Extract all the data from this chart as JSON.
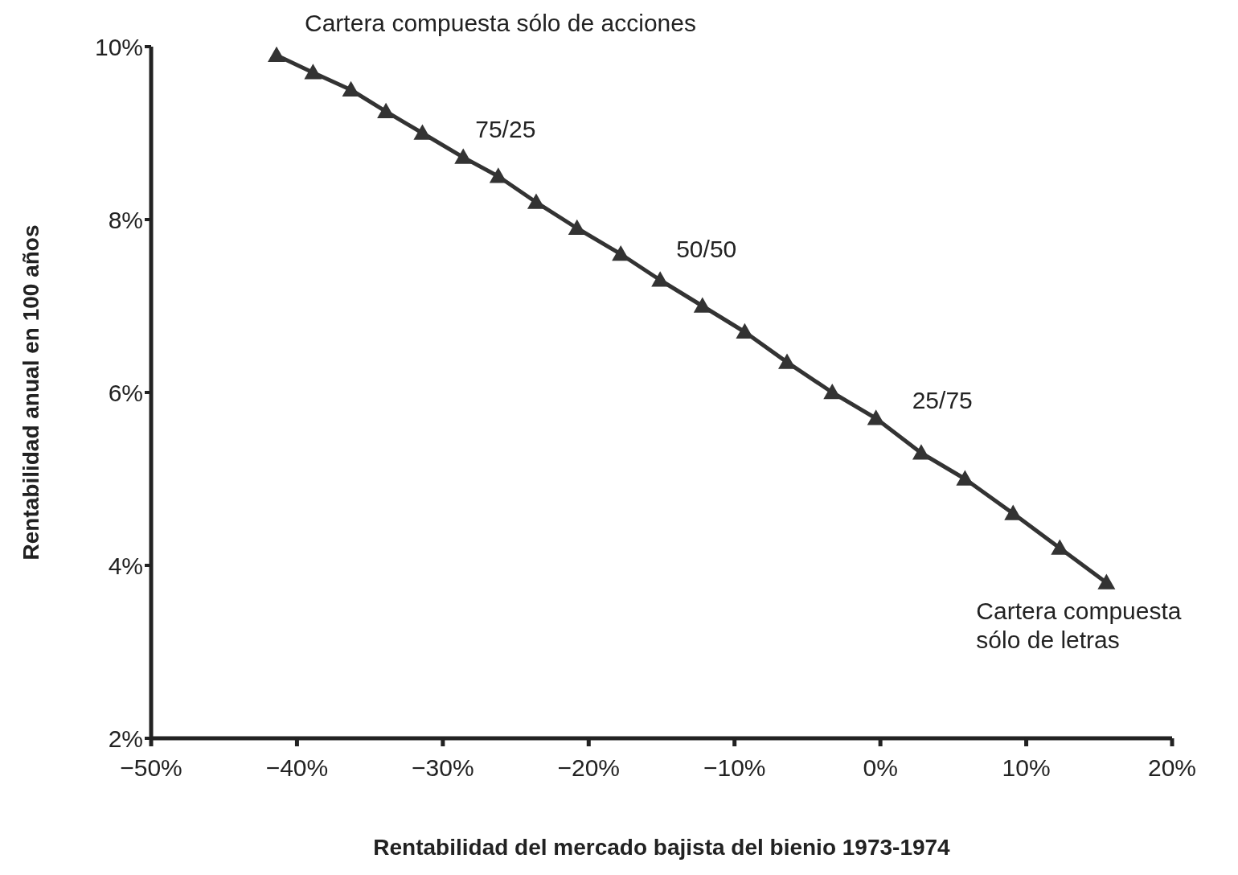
{
  "chart_data": {
    "type": "line",
    "xlabel": "Rentabilidad del mercado bajista del bienio 1973-1974",
    "ylabel": "Rentabilidad anual en 100 años",
    "x": [
      -41.4,
      -38.9,
      -36.3,
      -33.9,
      -31.4,
      -28.6,
      -26.2,
      -23.6,
      -20.8,
      -17.8,
      -15.1,
      -12.2,
      -9.3,
      -6.4,
      -3.3,
      -0.3,
      2.8,
      5.8,
      9.1,
      12.3,
      15.5
    ],
    "series": [
      {
        "color": "#333333",
        "values": [
          9.9,
          9.7,
          9.5,
          9.25,
          9.0,
          8.72,
          8.5,
          8.2,
          7.9,
          7.6,
          7.3,
          7.0,
          6.7,
          6.35,
          6.0,
          5.7,
          5.3,
          5.0,
          4.6,
          4.2,
          3.8
        ]
      }
    ],
    "xlim": [
      -50,
      20
    ],
    "xticks": [
      {
        "value": -50,
        "label": "−50%"
      },
      {
        "value": -40,
        "label": "−40%"
      },
      {
        "value": -30,
        "label": "−30%"
      },
      {
        "value": -20,
        "label": "−20%"
      },
      {
        "value": -10,
        "label": "−10%"
      },
      {
        "value": 0,
        "label": "0%"
      },
      {
        "value": 10,
        "label": "10%"
      },
      {
        "value": 20,
        "label": "20%"
      }
    ],
    "ylim": [
      2,
      10
    ],
    "yticks": [
      {
        "value": 2,
        "label": "2%"
      },
      {
        "value": 4,
        "label": "4%"
      },
      {
        "value": 6,
        "label": "6%"
      },
      {
        "value": 8,
        "label": "8%"
      },
      {
        "value": 10,
        "label": "10%"
      }
    ],
    "annotations": [
      {
        "text": "Cartera compuesta sólo de acciones",
        "x": -41.4,
        "y": 9.9
      },
      {
        "text": "75/25",
        "x": -28.6,
        "y": 8.72
      },
      {
        "text": "50/50",
        "x": -15.1,
        "y": 7.3
      },
      {
        "text": "25/75",
        "x": -0.3,
        "y": 5.7
      },
      {
        "text": "Cartera compuesta sólo de letras",
        "x": 15.5,
        "y": 3.8
      }
    ],
    "grid": false,
    "legend": false,
    "marker": "triangle",
    "line_style": "solid"
  }
}
